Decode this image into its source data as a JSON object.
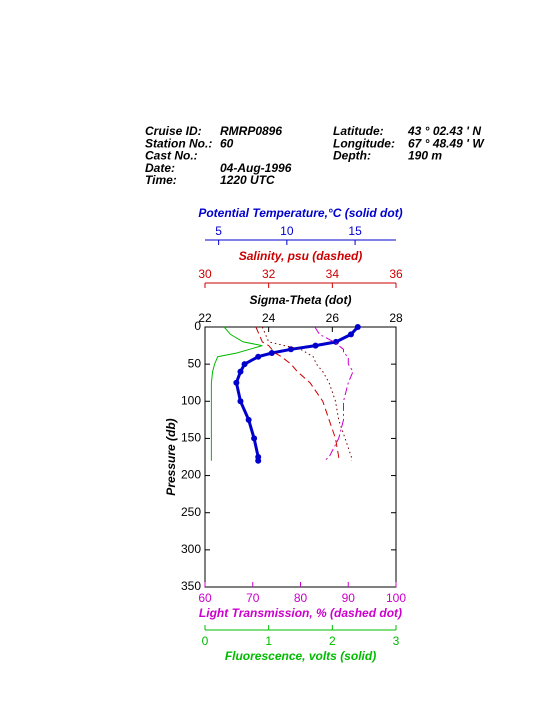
{
  "header": {
    "left": [
      {
        "label": "Cruise ID:",
        "value": "RMRP0896"
      },
      {
        "label": "Station No.:",
        "value": "60"
      },
      {
        "label": "Cast No.:"
      },
      {
        "label": "Date:",
        "value": "04-Aug-1996"
      },
      {
        "label": "Time:",
        "value": "1220 UTC"
      }
    ],
    "right": [
      {
        "label": "Latitude:",
        "value": "43 ° 02.43 ' N"
      },
      {
        "label": "Longitude:",
        "value": "67 ° 48.49 ' W"
      },
      {
        "label": "Depth:",
        "value": "190 m"
      }
    ]
  },
  "chart_data": {
    "type": "profile",
    "y_label": "Pressure (db)",
    "ylim": [
      0,
      350
    ],
    "yticks": [
      0,
      50,
      100,
      150,
      200,
      250,
      300,
      350
    ],
    "y_reversed": true,
    "y": [
      0,
      10,
      20,
      25,
      30,
      35,
      40,
      50,
      60,
      75,
      100,
      125,
      150,
      175,
      180
    ],
    "series": [
      {
        "name": "Potential Temperature,°C (solid dot)",
        "color": "#0000cc",
        "style": "dot",
        "axis_position": "top",
        "xlim": [
          4,
          18
        ],
        "xticks": [
          5,
          10,
          15
        ],
        "values": [
          15.2,
          14.7,
          13.6,
          12.1,
          10.3,
          8.9,
          7.9,
          6.9,
          6.6,
          6.3,
          6.6,
          7.2,
          7.6,
          7.9,
          7.9
        ]
      },
      {
        "name": "Salinity, psu  (dashed)",
        "color": "#cc0000",
        "style": "dashed",
        "axis_position": "top",
        "xlim": [
          30,
          36
        ],
        "xticks": [
          30,
          32,
          34,
          36
        ],
        "values": [
          31.6,
          31.7,
          31.8,
          32.0,
          32.1,
          32.2,
          32.4,
          32.7,
          32.9,
          33.3,
          33.7,
          33.9,
          34.1,
          34.2,
          34.2
        ]
      },
      {
        "name": "Sigma-Theta (dot)",
        "color": "#800000",
        "axis_color": "#000000",
        "style": "dotted",
        "axis_position": "top",
        "xlim": [
          22,
          28
        ],
        "xticks": [
          22,
          24,
          26,
          28
        ],
        "values": [
          23.8,
          23.9,
          24.0,
          24.5,
          25.0,
          25.2,
          25.4,
          25.5,
          25.7,
          25.9,
          26.1,
          26.2,
          26.4,
          26.6,
          26.6
        ]
      },
      {
        "name": "Light Transmission, % (dashed dot)",
        "color": "#cc00cc",
        "style": "dashdot",
        "axis_position": "bottom",
        "xlim": [
          60,
          100
        ],
        "xticks": [
          60,
          70,
          80,
          90,
          100
        ],
        "values": [
          83,
          84,
          87,
          88,
          89,
          89,
          90,
          90,
          91,
          90,
          89,
          89,
          88,
          86,
          85
        ]
      },
      {
        "name": "Fluorescence, volts (solid)",
        "color": "#00bb00",
        "style": "solid",
        "axis_position": "bottom",
        "xlim": [
          0,
          3
        ],
        "xticks": [
          0,
          1,
          2,
          3
        ],
        "values": [
          0.3,
          0.4,
          0.6,
          0.9,
          0.7,
          0.5,
          0.2,
          0.15,
          0.12,
          0.1,
          0.1,
          0.1,
          0.1,
          0.1,
          0.1
        ]
      }
    ]
  }
}
